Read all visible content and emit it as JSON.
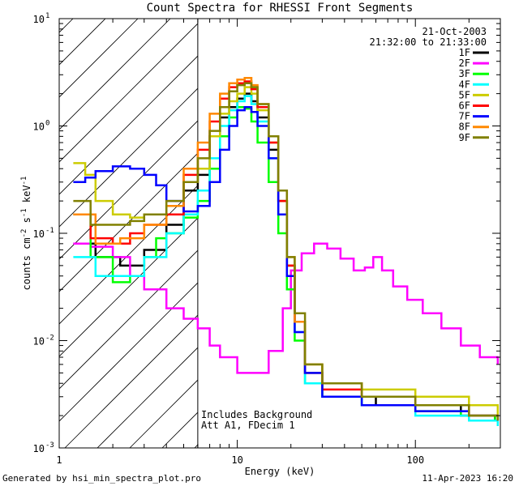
{
  "chart_data": {
    "type": "line",
    "title": "Count Spectra for RHESSI Front Segments",
    "xlabel": "Energy (keV)",
    "ylabel_parts": [
      "counts cm",
      "-2",
      " s",
      "-1",
      " keV",
      "-1"
    ],
    "xscale": "log",
    "yscale": "log",
    "xlim": [
      1,
      300
    ],
    "ylim": [
      0.001,
      10
    ],
    "x_tick_labels": [
      {
        "value": 1,
        "label": "1"
      },
      {
        "value": 10,
        "label": "10"
      },
      {
        "value": 100,
        "label": "100"
      }
    ],
    "y_tick_labels": [
      {
        "value": 10,
        "mantissa": "10",
        "exponent": "1"
      },
      {
        "value": 1,
        "mantissa": "10",
        "exponent": "0"
      },
      {
        "value": 0.1,
        "mantissa": "10",
        "exponent": "-1"
      },
      {
        "value": 0.01,
        "mantissa": "10",
        "exponent": "-2"
      },
      {
        "value": 0.001,
        "mantissa": "10",
        "exponent": "-3"
      }
    ],
    "hatched_region": {
      "xmin": 1,
      "xmax": 6,
      "note": "region below ~6 keV hatched"
    },
    "annotations": {
      "date": "21-Oct-2003",
      "time_range": "21:32:00 to 21:33:00",
      "background_note": "Includes Background",
      "attenuator_note": "Att A1, FDecim 1",
      "generated_by": "Generated by hsi_min_spectra_plot.pro",
      "plot_date": "11-Apr-2023 16:20"
    },
    "series": [
      {
        "name": "1F",
        "color": "#000000",
        "points": [
          [
            1.2,
            0.08
          ],
          [
            1.6,
            0.06
          ],
          [
            2.2,
            0.05
          ],
          [
            3,
            0.07
          ],
          [
            4,
            0.12
          ],
          [
            5,
            0.25
          ],
          [
            6,
            0.35
          ],
          [
            7,
            0.8
          ],
          [
            8,
            1.2
          ],
          [
            9,
            1.5
          ],
          [
            10,
            1.8
          ],
          [
            11,
            2.0
          ],
          [
            12,
            1.7
          ],
          [
            13,
            1.2
          ],
          [
            15,
            0.6
          ],
          [
            17,
            0.2
          ],
          [
            19,
            0.05
          ],
          [
            21,
            0.015
          ],
          [
            24,
            0.005
          ],
          [
            30,
            0.003
          ],
          [
            40,
            0.003
          ],
          [
            60,
            0.0025
          ],
          [
            100,
            0.0025
          ],
          [
            180,
            0.002
          ],
          [
            280,
            0.0018
          ]
        ]
      },
      {
        "name": "2F",
        "color": "#ff00ff",
        "points": [
          [
            1.2,
            0.08
          ],
          [
            1.5,
            0.075
          ],
          [
            2,
            0.06
          ],
          [
            2.5,
            0.04
          ],
          [
            3,
            0.03
          ],
          [
            4,
            0.02
          ],
          [
            5,
            0.016
          ],
          [
            6,
            0.013
          ],
          [
            7,
            0.009
          ],
          [
            8,
            0.007
          ],
          [
            10,
            0.005
          ],
          [
            12,
            0.005
          ],
          [
            15,
            0.008
          ],
          [
            18,
            0.02
          ],
          [
            20,
            0.045
          ],
          [
            23,
            0.065
          ],
          [
            27,
            0.08
          ],
          [
            32,
            0.072
          ],
          [
            38,
            0.058
          ],
          [
            45,
            0.045
          ],
          [
            52,
            0.048
          ],
          [
            58,
            0.06
          ],
          [
            65,
            0.045
          ],
          [
            75,
            0.032
          ],
          [
            90,
            0.024
          ],
          [
            110,
            0.018
          ],
          [
            140,
            0.013
          ],
          [
            180,
            0.009
          ],
          [
            230,
            0.007
          ],
          [
            290,
            0.006
          ]
        ]
      },
      {
        "name": "3F",
        "color": "#00ff00",
        "points": [
          [
            1.2,
            0.15
          ],
          [
            1.5,
            0.06
          ],
          [
            2,
            0.035
          ],
          [
            2.5,
            0.04
          ],
          [
            3,
            0.06
          ],
          [
            3.5,
            0.09
          ],
          [
            4,
            0.1
          ],
          [
            5,
            0.14
          ],
          [
            6,
            0.2
          ],
          [
            7,
            0.4
          ],
          [
            8,
            0.8
          ],
          [
            9,
            1.2
          ],
          [
            10,
            1.5
          ],
          [
            11,
            1.45
          ],
          [
            12,
            1.1
          ],
          [
            13,
            0.7
          ],
          [
            15,
            0.3
          ],
          [
            17,
            0.1
          ],
          [
            19,
            0.03
          ],
          [
            21,
            0.01
          ],
          [
            24,
            0.004
          ],
          [
            30,
            0.003
          ],
          [
            50,
            0.0025
          ],
          [
            100,
            0.0022
          ],
          [
            180,
            0.002
          ],
          [
            280,
            0.0018
          ]
        ]
      },
      {
        "name": "4F",
        "color": "#00ffff",
        "points": [
          [
            1.2,
            0.06
          ],
          [
            1.6,
            0.04
          ],
          [
            2.2,
            0.04
          ],
          [
            3,
            0.06
          ],
          [
            4,
            0.1
          ],
          [
            5,
            0.15
          ],
          [
            6,
            0.25
          ],
          [
            7,
            0.5
          ],
          [
            8,
            1.0
          ],
          [
            9,
            1.4
          ],
          [
            10,
            1.7
          ],
          [
            11,
            1.9
          ],
          [
            12,
            1.6
          ],
          [
            13,
            1.1
          ],
          [
            15,
            0.5
          ],
          [
            17,
            0.15
          ],
          [
            19,
            0.04
          ],
          [
            21,
            0.012
          ],
          [
            24,
            0.004
          ],
          [
            30,
            0.003
          ],
          [
            50,
            0.0025
          ],
          [
            100,
            0.002
          ],
          [
            200,
            0.0018
          ],
          [
            290,
            0.0016
          ]
        ]
      },
      {
        "name": "5F",
        "color": "#cccc00",
        "points": [
          [
            1.2,
            0.45
          ],
          [
            1.4,
            0.35
          ],
          [
            1.6,
            0.2
          ],
          [
            2,
            0.15
          ],
          [
            2.5,
            0.14
          ],
          [
            3,
            0.15
          ],
          [
            4,
            0.18
          ],
          [
            5,
            0.3
          ],
          [
            6,
            0.4
          ],
          [
            7,
            0.8
          ],
          [
            8,
            1.3
          ],
          [
            9,
            1.7
          ],
          [
            10,
            2.0
          ],
          [
            11,
            2.3
          ],
          [
            12,
            2.0
          ],
          [
            13,
            1.4
          ],
          [
            15,
            0.7
          ],
          [
            17,
            0.2
          ],
          [
            19,
            0.05
          ],
          [
            21,
            0.015
          ],
          [
            24,
            0.006
          ],
          [
            30,
            0.004
          ],
          [
            50,
            0.0035
          ],
          [
            100,
            0.003
          ],
          [
            200,
            0.0025
          ],
          [
            290,
            0.002
          ]
        ]
      },
      {
        "name": "6F",
        "color": "#ff0000",
        "points": [
          [
            1.2,
            0.15
          ],
          [
            1.5,
            0.09
          ],
          [
            2,
            0.08
          ],
          [
            2.5,
            0.1
          ],
          [
            3,
            0.12
          ],
          [
            4,
            0.15
          ],
          [
            5,
            0.35
          ],
          [
            6,
            0.6
          ],
          [
            7,
            1.1
          ],
          [
            8,
            1.8
          ],
          [
            9,
            2.3
          ],
          [
            10,
            2.5
          ],
          [
            11,
            2.6
          ],
          [
            12,
            2.2
          ],
          [
            13,
            1.5
          ],
          [
            15,
            0.7
          ],
          [
            17,
            0.2
          ],
          [
            19,
            0.05
          ],
          [
            21,
            0.015
          ],
          [
            24,
            0.005
          ],
          [
            30,
            0.0035
          ],
          [
            50,
            0.003
          ],
          [
            100,
            0.0025
          ],
          [
            200,
            0.002
          ],
          [
            290,
            0.0018
          ]
        ]
      },
      {
        "name": "7F",
        "color": "#0000ff",
        "points": [
          [
            1.2,
            0.3
          ],
          [
            1.4,
            0.33
          ],
          [
            1.6,
            0.38
          ],
          [
            2,
            0.42
          ],
          [
            2.5,
            0.4
          ],
          [
            3,
            0.35
          ],
          [
            3.5,
            0.28
          ],
          [
            4,
            0.2
          ],
          [
            5,
            0.16
          ],
          [
            6,
            0.18
          ],
          [
            7,
            0.3
          ],
          [
            8,
            0.6
          ],
          [
            9,
            1.0
          ],
          [
            10,
            1.4
          ],
          [
            11,
            1.5
          ],
          [
            12,
            1.35
          ],
          [
            13,
            1.0
          ],
          [
            15,
            0.5
          ],
          [
            17,
            0.15
          ],
          [
            19,
            0.04
          ],
          [
            21,
            0.012
          ],
          [
            24,
            0.005
          ],
          [
            30,
            0.003
          ],
          [
            50,
            0.0025
          ],
          [
            100,
            0.0022
          ],
          [
            200,
            0.002
          ],
          [
            290,
            0.0018
          ]
        ]
      },
      {
        "name": "8F",
        "color": "#ff8800",
        "points": [
          [
            1.2,
            0.15
          ],
          [
            1.6,
            0.08
          ],
          [
            2.2,
            0.09
          ],
          [
            3,
            0.12
          ],
          [
            4,
            0.18
          ],
          [
            5,
            0.4
          ],
          [
            6,
            0.7
          ],
          [
            7,
            1.3
          ],
          [
            8,
            2.0
          ],
          [
            9,
            2.5
          ],
          [
            10,
            2.7
          ],
          [
            11,
            2.8
          ],
          [
            12,
            2.4
          ],
          [
            13,
            1.6
          ],
          [
            15,
            0.8
          ],
          [
            17,
            0.25
          ],
          [
            19,
            0.06
          ],
          [
            21,
            0.015
          ],
          [
            24,
            0.006
          ],
          [
            30,
            0.004
          ],
          [
            50,
            0.003
          ],
          [
            100,
            0.0025
          ],
          [
            200,
            0.002
          ],
          [
            290,
            0.0018
          ]
        ]
      },
      {
        "name": "9F",
        "color": "#808000",
        "points": [
          [
            1.2,
            0.2
          ],
          [
            1.5,
            0.12
          ],
          [
            2,
            0.12
          ],
          [
            2.5,
            0.13
          ],
          [
            3,
            0.15
          ],
          [
            4,
            0.2
          ],
          [
            5,
            0.3
          ],
          [
            6,
            0.5
          ],
          [
            7,
            0.9
          ],
          [
            8,
            1.5
          ],
          [
            9,
            2.1
          ],
          [
            10,
            2.4
          ],
          [
            11,
            2.5
          ],
          [
            12,
            2.3
          ],
          [
            13,
            1.6
          ],
          [
            15,
            0.8
          ],
          [
            17,
            0.25
          ],
          [
            19,
            0.06
          ],
          [
            21,
            0.018
          ],
          [
            24,
            0.006
          ],
          [
            30,
            0.004
          ],
          [
            50,
            0.003
          ],
          [
            100,
            0.0025
          ],
          [
            200,
            0.002
          ],
          [
            290,
            0.0018
          ]
        ]
      }
    ]
  }
}
